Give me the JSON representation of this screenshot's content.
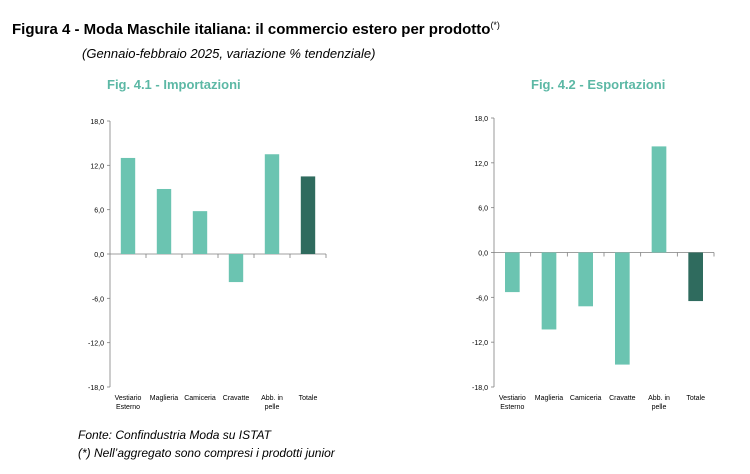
{
  "figure": {
    "title": "Figura 4 - Moda Maschile italiana: il commercio estero per prodotto",
    "title_note": "(*)",
    "subtitle": "(Gennaio-febbraio 2025, variazione % tendenziale)"
  },
  "footer": {
    "source": "Fonte: Confindustria Moda su ISTAT",
    "note": "(*) Nell’aggregato sono compresi i prodotti junior"
  },
  "colors": {
    "bar": "#6bc4b1",
    "total": "#2f6b5e",
    "axis": "#7f7f7f"
  },
  "chart_data": [
    {
      "type": "bar",
      "title": "Fig. 4.1 - Importazioni",
      "categories": [
        [
          "Vestiario",
          "Esterno"
        ],
        [
          "Maglieria"
        ],
        [
          "Camiceria"
        ],
        [
          "Cravatte"
        ],
        [
          "Abb. in",
          "pelle"
        ],
        [
          "Totale"
        ]
      ],
      "values": [
        13.0,
        8.8,
        5.8,
        -3.8,
        13.5,
        10.5
      ],
      "ylim": [
        -18,
        18
      ],
      "yticks": [
        "18,0",
        "12,0",
        "6,0",
        "0,0",
        "-6,0",
        "-12,0",
        "-18,0"
      ],
      "xlabel": "",
      "ylabel": "",
      "grid": false
    },
    {
      "type": "bar",
      "title": "Fig. 4.2 - Esportazioni",
      "categories": [
        [
          "Vestiario",
          "Esterno"
        ],
        [
          "Maglieria"
        ],
        [
          "Camiceria"
        ],
        [
          "Cravatte"
        ],
        [
          "Abb. in",
          "pelle"
        ],
        [
          "Totale"
        ]
      ],
      "values": [
        -5.3,
        -10.3,
        -7.2,
        -15.0,
        14.2,
        -6.5
      ],
      "ylim": [
        -18,
        18
      ],
      "yticks": [
        "18,0",
        "12,0",
        "6,0",
        "0,0",
        "-6,0",
        "-12,0",
        "-18,0"
      ],
      "xlabel": "",
      "ylabel": "",
      "grid": false
    }
  ]
}
